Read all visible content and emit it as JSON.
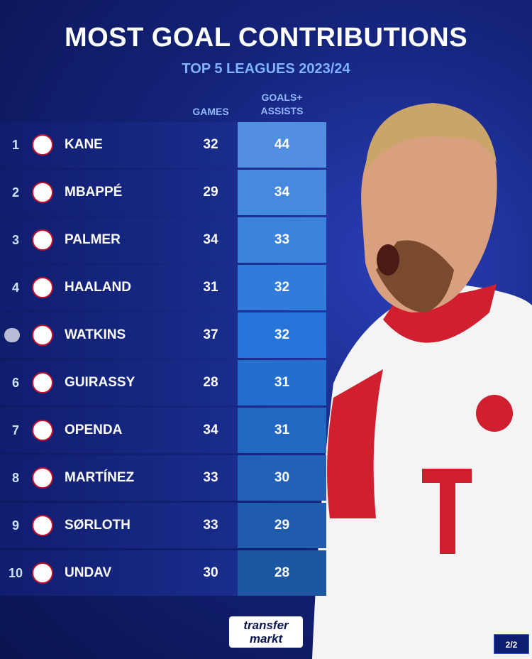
{
  "header": {
    "title": "MOST GOAL CONTRIBUTIONS",
    "subtitle": "TOP 5 LEAGUES 2023/24"
  },
  "table": {
    "columns": {
      "games": "GAMES",
      "ga": [
        "GOALS+",
        "ASSISTS"
      ]
    },
    "rows": [
      {
        "rank": "1",
        "player": "KANE",
        "games": 32,
        "ga": 44
      },
      {
        "rank": "2",
        "player": "MBAPPÉ",
        "games": 29,
        "ga": 34
      },
      {
        "rank": "3",
        "player": "PALMER",
        "games": 34,
        "ga": 33
      },
      {
        "rank": "4",
        "player": "HAALAND",
        "games": 31,
        "ga": 32
      },
      {
        "player": "WATKINS",
        "games": 37,
        "ga": 32
      },
      {
        "rank": "6",
        "player": "GUIRASSY",
        "games": 28,
        "ga": 31
      },
      {
        "rank": "7",
        "player": "OPENDA",
        "games": 34,
        "ga": 31
      },
      {
        "rank": "8",
        "player": "MARTÍNEZ",
        "games": 33,
        "ga": 30
      },
      {
        "rank": "9",
        "player": "SØRLOTH",
        "games": 33,
        "ga": 29
      },
      {
        "rank": "10",
        "player": "UNDAV",
        "games": 30,
        "ga": 28
      }
    ]
  },
  "footer": {
    "brand": [
      "transfer",
      "markt"
    ],
    "page": "2/2"
  }
}
